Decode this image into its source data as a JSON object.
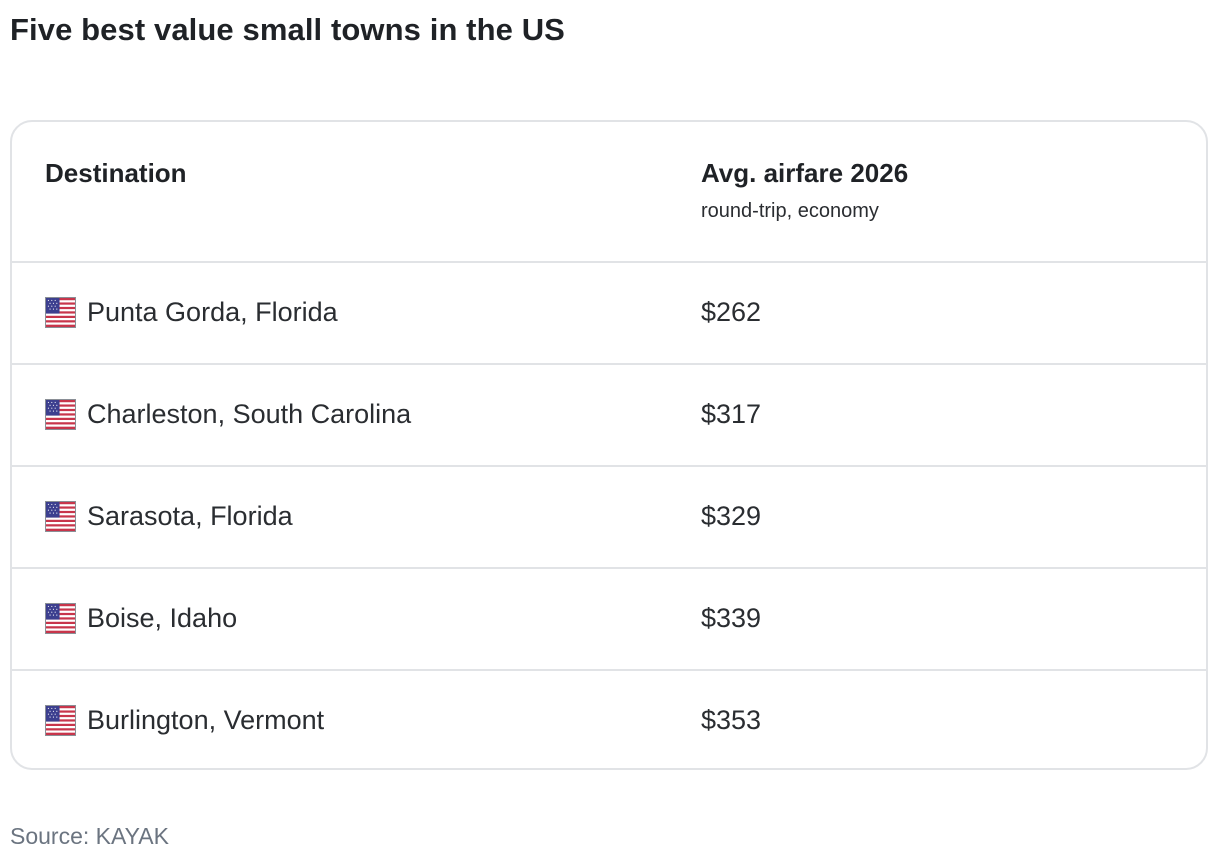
{
  "title": "Five best value small towns in the US",
  "table": {
    "headers": {
      "destination": "Destination",
      "airfare": "Avg. airfare 2026",
      "airfare_sub": "round-trip, economy"
    },
    "rows": [
      {
        "flag": "us-flag-icon",
        "destination": "Punta Gorda, Florida",
        "airfare": "$262"
      },
      {
        "flag": "us-flag-icon",
        "destination": "Charleston, South Carolina",
        "airfare": "$317"
      },
      {
        "flag": "us-flag-icon",
        "destination": "Sarasota, Florida",
        "airfare": "$329"
      },
      {
        "flag": "us-flag-icon",
        "destination": "Boise, Idaho",
        "airfare": "$339"
      },
      {
        "flag": "us-flag-icon",
        "destination": "Burlington, Vermont",
        "airfare": "$353"
      }
    ]
  },
  "source": "Source: KAYAK"
}
